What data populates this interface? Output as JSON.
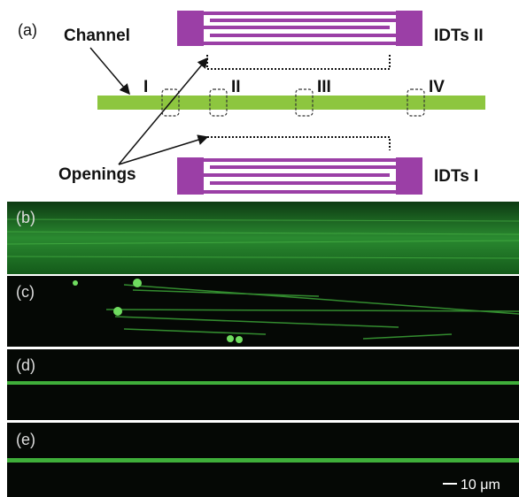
{
  "panel_a": {
    "label": "(a)",
    "channel": "Channel",
    "idts_top": "IDTs II",
    "idts_bottom": "IDTs I",
    "openings": "Openings",
    "regions": [
      "I",
      "II",
      "III",
      "IV"
    ]
  },
  "panels": [
    "(b)",
    "(c)",
    "(d)",
    "(e)"
  ],
  "scale_bar": "10 μm"
}
